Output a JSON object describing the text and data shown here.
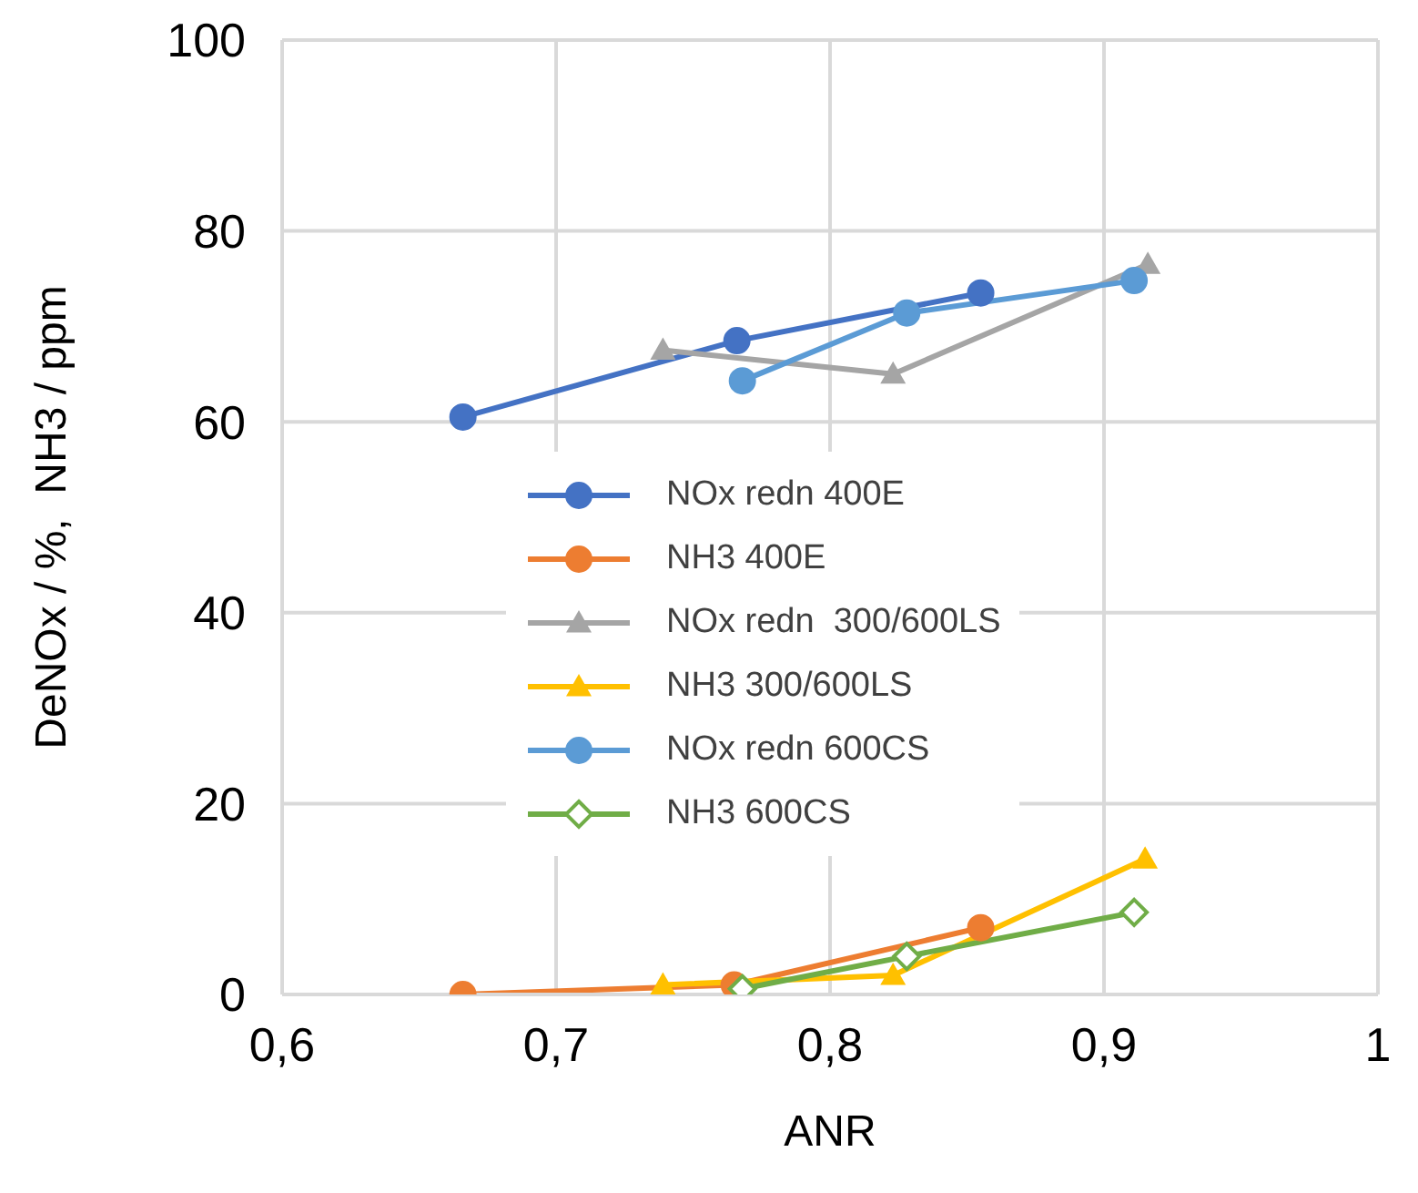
{
  "chart_data": {
    "type": "line",
    "xlabel": "ANR",
    "ylabel": "DeNOx / %,  NH3 / ppm",
    "xlim": [
      0.6,
      1
    ],
    "xticks": [
      {
        "value": 0.6,
        "label": "0,6"
      },
      {
        "value": 0.7,
        "label": "0,7"
      },
      {
        "value": 0.8,
        "label": "0,8"
      },
      {
        "value": 0.9,
        "label": "0,9"
      },
      {
        "value": 1,
        "label": "1"
      }
    ],
    "ylim": [
      0,
      100
    ],
    "yticks": [
      0,
      20,
      40,
      60,
      80,
      100
    ],
    "grid": true,
    "legend": "center",
    "series": [
      {
        "name": "NOx redn 400E",
        "color": "#4472c4",
        "marker": "circle",
        "x": [
          0.666,
          0.766,
          0.855
        ],
        "values": [
          60.5,
          68.5,
          73.5
        ]
      },
      {
        "name": "NH3 400E",
        "color": "#ed7d31",
        "marker": "circle",
        "x": [
          0.666,
          0.765,
          0.855
        ],
        "values": [
          0,
          1,
          7
        ]
      },
      {
        "name": "NOx redn  300/600LS",
        "color": "#a5a5a5",
        "marker": "triangle",
        "x": [
          0.739,
          0.823,
          0.916
        ],
        "values": [
          67.5,
          65,
          76.5
        ]
      },
      {
        "name": "NH3 300/600LS",
        "color": "#ffc000",
        "marker": "triangle",
        "x": [
          0.739,
          0.823,
          0.915
        ],
        "values": [
          1,
          2,
          14.2
        ]
      },
      {
        "name": "NOx redn 600CS",
        "color": "#5b9bd5",
        "marker": "circle",
        "x": [
          0.768,
          0.828,
          0.911
        ],
        "values": [
          64.3,
          71.4,
          74.8
        ]
      },
      {
        "name": "NH3 600CS",
        "color": "#70ad47",
        "marker": "diamond",
        "x": [
          0.768,
          0.828,
          0.911
        ],
        "values": [
          0.6,
          4,
          8.6
        ]
      }
    ]
  }
}
